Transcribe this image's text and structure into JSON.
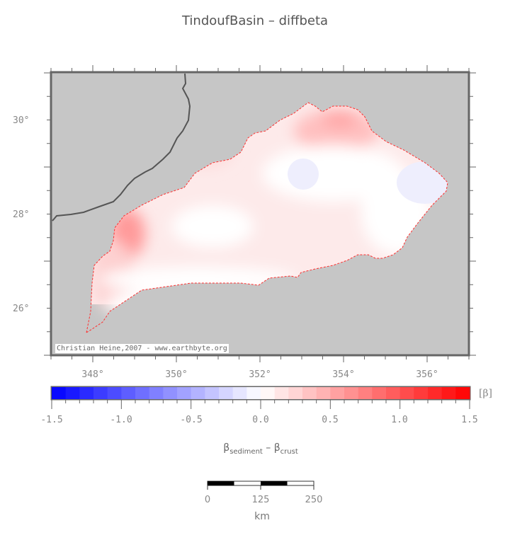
{
  "title": "TindoufBasin – diffbeta",
  "map": {
    "lon_ticks": [
      "348°",
      "350°",
      "352°",
      "354°",
      "356°"
    ],
    "lat_ticks": [
      "30°",
      "28°",
      "26°"
    ],
    "lon_range": [
      347,
      357
    ],
    "lat_range": [
      25,
      31
    ],
    "credit": "Christian Heine,2007 - www.earthbyte.org",
    "land_color": "#c6c6c6",
    "outline_color": "#ff0000"
  },
  "colorbar": {
    "ticks": [
      "-1.5",
      "-1.0",
      "-0.5",
      "0.0",
      "0.5",
      "1.0",
      "1.5"
    ],
    "range": [
      -1.5,
      1.5
    ],
    "step": 0.1,
    "unit": "[β]",
    "label_main": "β",
    "label_sub1": "sediment",
    "label_mid": " – β",
    "label_sub2": "crust",
    "low_color": "#0000ff",
    "mid_color": "#ffffff",
    "high_color": "#ff0000"
  },
  "scalebar": {
    "ticks": [
      "0",
      "125",
      "250"
    ],
    "unit": "km"
  }
}
